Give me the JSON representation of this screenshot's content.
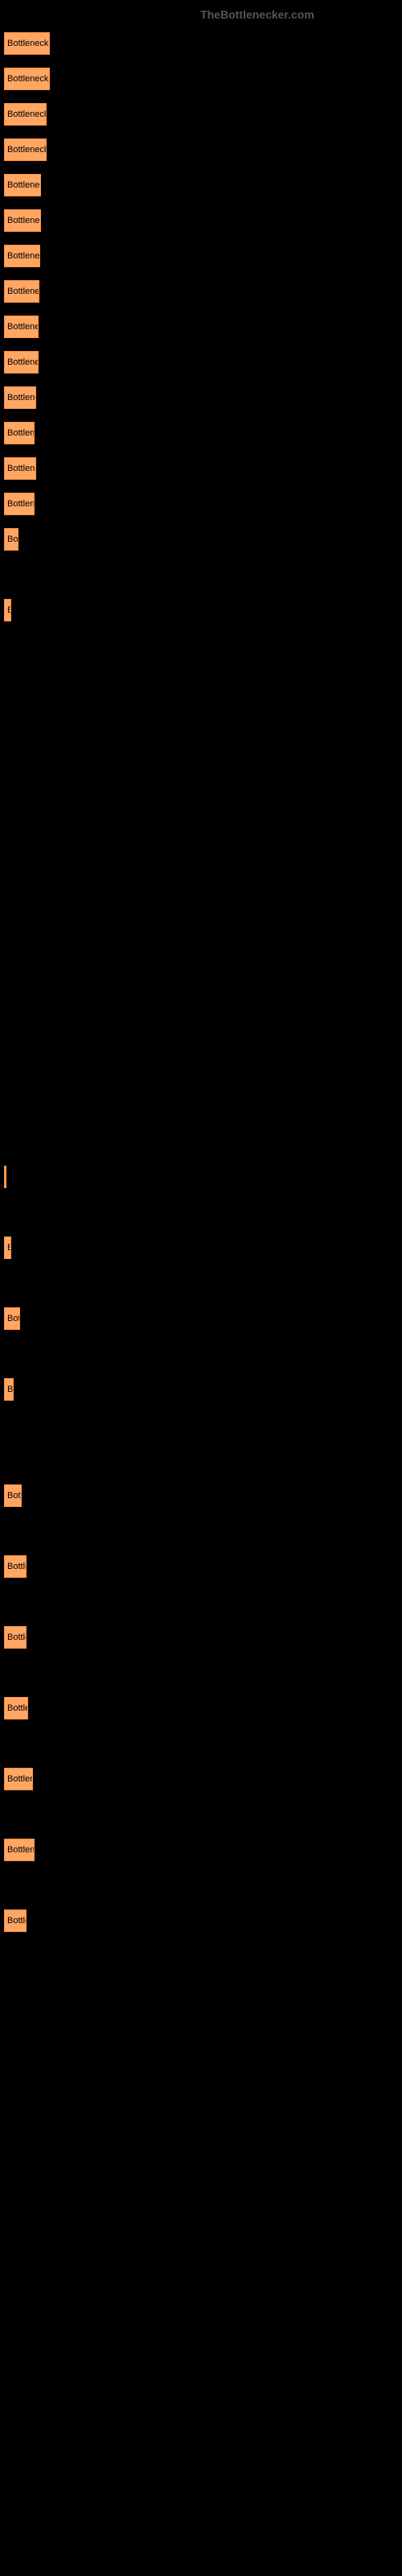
{
  "watermark": "TheBottlenecker.com",
  "chart": {
    "type": "bar",
    "bar_color": "#ffa663",
    "bar_border": "#ff9040",
    "background_color": "#000000",
    "text_color": "#000000",
    "label_fontsize": 11,
    "max_width": 490,
    "bars": [
      {
        "label": "Bottleneck re",
        "width": 57
      },
      {
        "label": "Bottleneck re",
        "width": 57
      },
      {
        "label": "Bottleneck r",
        "width": 53
      },
      {
        "label": "Bottleneck r",
        "width": 53
      },
      {
        "label": "Bottleneck",
        "width": 46
      },
      {
        "label": "Bottleneck",
        "width": 46
      },
      {
        "label": "Bottleneck",
        "width": 45
      },
      {
        "label": "Bottleneck",
        "width": 44
      },
      {
        "label": "Bottleneck",
        "width": 43
      },
      {
        "label": "Bottleneck",
        "width": 43
      },
      {
        "label": "Bottlenec",
        "width": 40
      },
      {
        "label": "Bottlene",
        "width": 38
      },
      {
        "label": "Bottlenec",
        "width": 40
      },
      {
        "label": "Bottlene",
        "width": 38
      },
      {
        "label": "Bot",
        "width": 18
      },
      {
        "label": "",
        "width": 0
      },
      {
        "label": "B",
        "width": 9
      },
      {
        "label": "",
        "width": 0
      },
      {
        "label": "",
        "width": 0
      },
      {
        "label": "",
        "width": 0
      },
      {
        "label": "",
        "width": 0
      },
      {
        "label": "",
        "width": 0
      },
      {
        "label": "",
        "width": 0
      },
      {
        "label": "",
        "width": 0
      },
      {
        "label": "",
        "width": 0
      },
      {
        "label": "",
        "width": 0
      },
      {
        "label": "",
        "width": 0
      },
      {
        "label": "",
        "width": 0
      },
      {
        "label": "",
        "width": 0
      },
      {
        "label": "",
        "width": 0
      },
      {
        "label": "",
        "width": 0
      },
      {
        "label": "",
        "width": 0
      },
      {
        "label": "",
        "width": 3
      },
      {
        "label": "",
        "width": 0
      },
      {
        "label": "B",
        "width": 9
      },
      {
        "label": "",
        "width": 0
      },
      {
        "label": "Bott",
        "width": 20
      },
      {
        "label": "",
        "width": 0
      },
      {
        "label": "Bo",
        "width": 12
      },
      {
        "label": "",
        "width": 0
      },
      {
        "label": "",
        "width": 0
      },
      {
        "label": "Bott",
        "width": 22
      },
      {
        "label": "",
        "width": 0
      },
      {
        "label": "Bottle",
        "width": 28
      },
      {
        "label": "",
        "width": 0
      },
      {
        "label": "Bottle",
        "width": 28
      },
      {
        "label": "",
        "width": 0
      },
      {
        "label": "Bottle",
        "width": 30
      },
      {
        "label": "",
        "width": 0
      },
      {
        "label": "Bottlene",
        "width": 36
      },
      {
        "label": "",
        "width": 0
      },
      {
        "label": "Bottlene",
        "width": 38
      },
      {
        "label": "",
        "width": 0
      },
      {
        "label": "Bottle",
        "width": 28
      }
    ]
  }
}
